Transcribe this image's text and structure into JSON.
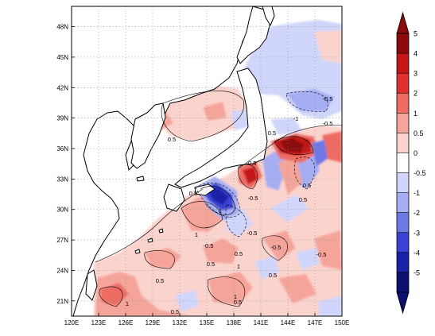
{
  "map": {
    "lon_ticks": [
      "120E",
      "123E",
      "126E",
      "129E",
      "132E",
      "135E",
      "138E",
      "141E",
      "144E",
      "147E",
      "150E"
    ],
    "lat_ticks": [
      "21N",
      "24N",
      "27N",
      "30N",
      "33N",
      "36N",
      "39N",
      "42N",
      "45N",
      "48N"
    ],
    "contour_labels": [
      "0.5",
      "0.5",
      "-0.5",
      "-1",
      "-0.5",
      "0.5",
      "1",
      "1",
      "-0.5",
      "-0.5",
      "0.5",
      "-0.5",
      "0.5",
      "-0.5",
      "1",
      "0.5",
      "1",
      "0.5",
      "0.5",
      "0.5",
      "-0.5",
      "0.5",
      "-0.5",
      "0.5",
      "1"
    ]
  },
  "colorbar": {
    "levels": [
      "5",
      "4",
      "3",
      "2",
      "1",
      "0.5",
      "0",
      "-0.5",
      "-1",
      "-2",
      "-3",
      "-4",
      "-5"
    ],
    "colors": [
      "#8b0b0b",
      "#c41818",
      "#e03030",
      "#ef6c64",
      "#f5a49a",
      "#fbd3cd",
      "#ffffff",
      "#d0d6fb",
      "#a5aef3",
      "#6e79e6",
      "#3a43d4",
      "#1a22a8",
      "#0a0f70"
    ]
  }
}
